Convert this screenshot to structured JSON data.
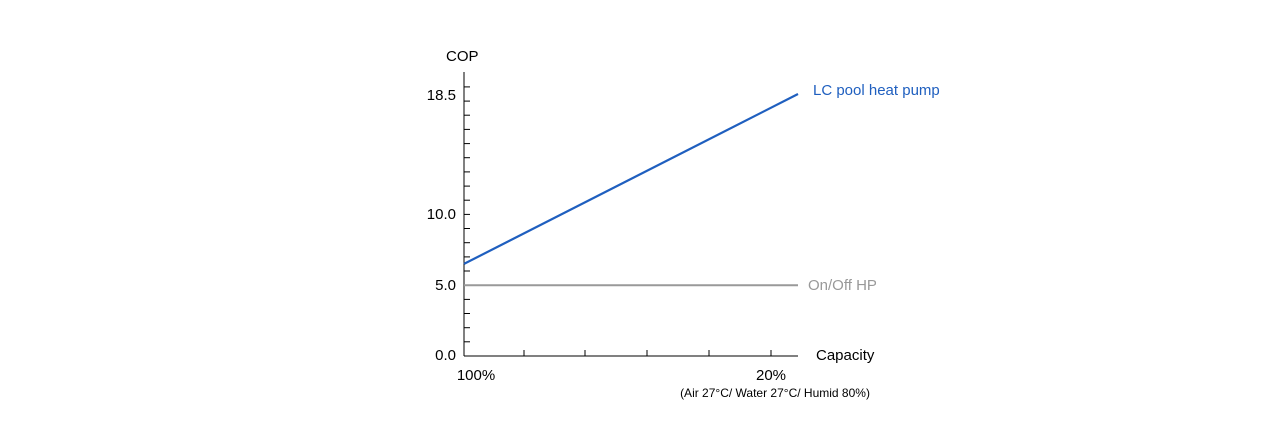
{
  "chart_data": {
    "type": "line",
    "title": "",
    "ylabel": "COP",
    "xlabel": "Capacity",
    "x_ticks": [
      "100%",
      "20%"
    ],
    "y_ticks": [
      {
        "value": 0,
        "label": "0.0"
      },
      {
        "value": 5,
        "label": "5.0"
      },
      {
        "value": 10,
        "label": "10.0"
      },
      {
        "value": 18.5,
        "label": "18.5"
      }
    ],
    "ylim": [
      0,
      20
    ],
    "xlim": [
      100,
      15
    ],
    "note": "(Air 27°C/ Water 27°C/ Humid 80%)",
    "series": [
      {
        "name": "LC pool heat pump",
        "color": "#1f5fbf",
        "x": [
          100,
          20
        ],
        "y": [
          6.5,
          18.5
        ]
      },
      {
        "name": "On/Off HP",
        "color": "#999999",
        "x": [
          100,
          20
        ],
        "y": [
          5.0,
          5.0
        ]
      }
    ]
  }
}
